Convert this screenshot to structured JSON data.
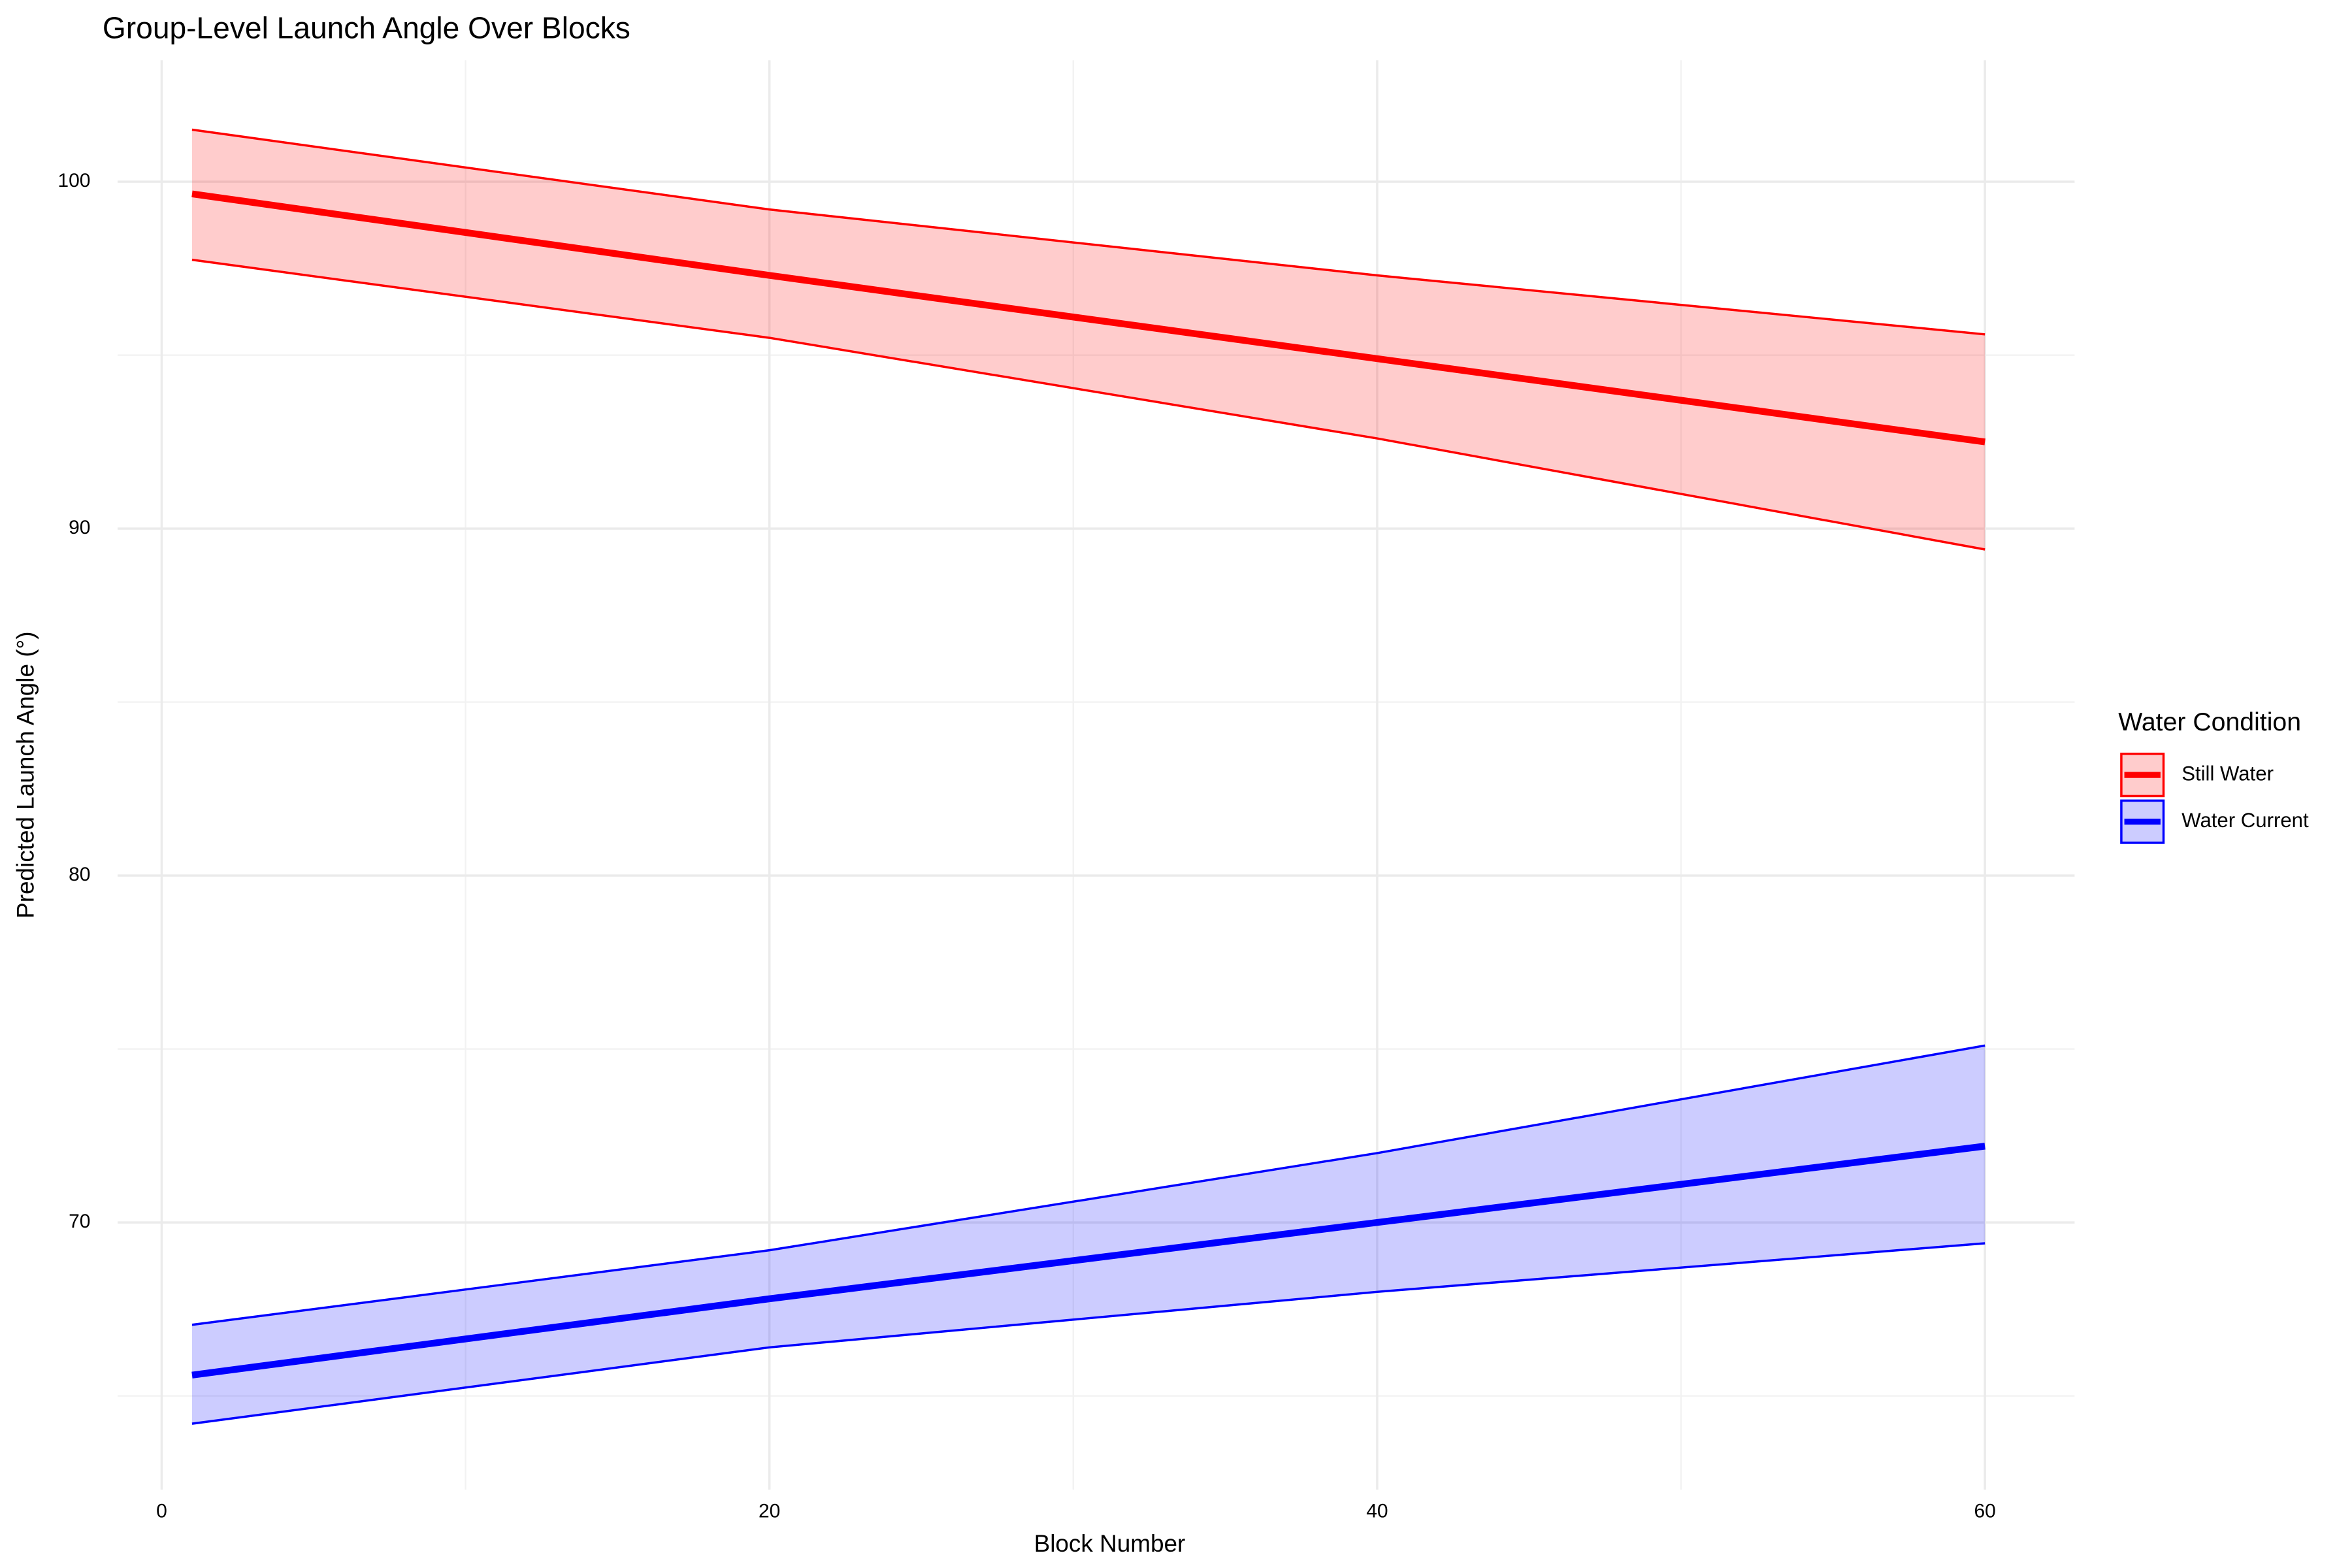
{
  "chart_data": {
    "type": "ribbon-line",
    "title": "Group-Level Launch Angle Over Blocks",
    "x_label": "Block Number",
    "y_label": "Predicted Launch Angle (°)",
    "legend_title": "Water Condition",
    "legend_position": "right",
    "grid": true,
    "x": [
      1,
      20,
      40,
      60
    ],
    "xlim": [
      -1.45,
      62.95
    ],
    "ylim": [
      62.3,
      103.5
    ],
    "xticks": [
      0,
      20,
      40,
      60
    ],
    "yticks": [
      70,
      80,
      90,
      100
    ],
    "x_minor_ticks": [
      10,
      30,
      50
    ],
    "y_minor_ticks": [
      65,
      75,
      85,
      95
    ],
    "series": [
      {
        "name": "Still Water",
        "color": "#ff0000",
        "values": [
          99.65,
          97.3,
          94.9,
          92.5
        ],
        "lower": [
          97.75,
          95.5,
          92.6,
          89.4
        ],
        "upper": [
          101.5,
          99.2,
          97.3,
          95.6
        ]
      },
      {
        "name": "Water Current",
        "color": "#0000ff",
        "values": [
          65.6,
          67.8,
          70.0,
          72.2
        ],
        "lower": [
          64.2,
          66.4,
          68.0,
          69.4
        ],
        "upper": [
          67.05,
          69.2,
          72.0,
          75.1
        ]
      }
    ]
  }
}
